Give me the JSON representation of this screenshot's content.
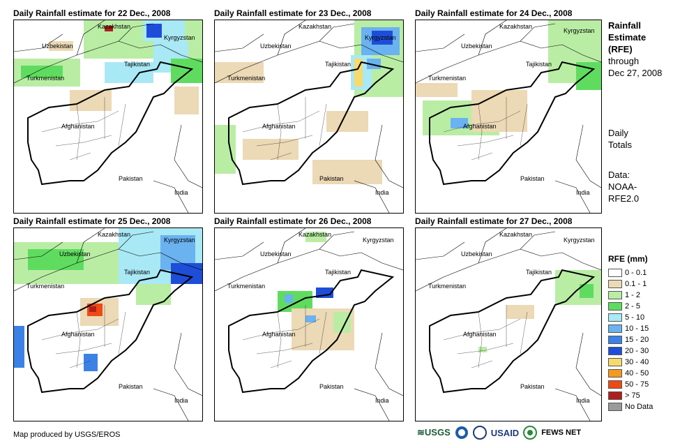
{
  "panels": [
    {
      "title": "Daily Rainfall estimate for 22 Dec., 2008"
    },
    {
      "title": "Daily Rainfall estimate for 23 Dec., 2008"
    },
    {
      "title": "Daily Rainfall estimate for 24 Dec., 2008"
    },
    {
      "title": "Daily Rainfall estimate for 25 Dec., 2008"
    },
    {
      "title": "Daily Rainfall estimate for 26 Dec., 2008"
    },
    {
      "title": "Daily Rainfall estimate for 27 Dec., 2008"
    }
  ],
  "places": {
    "kazakhstan": "Kazakhstan",
    "kyrgyzstan": "Kyrgyzstan",
    "uzbekistan": "Uzbekistan",
    "tajikistan": "Tajikistan",
    "turkmenistan": "Turkmenistan",
    "afghanistan": "Afghanistan",
    "pakistan": "Pakistan",
    "india": "India"
  },
  "sidebar": {
    "title_line1": "Rainfall",
    "title_line2": "Estimate",
    "title_line3": "(RFE)",
    "through": "through",
    "date": "Dec 27, 2008",
    "daily1": "Daily",
    "daily2": "Totals",
    "data1": "Data:",
    "data2": "NOAA-",
    "data3": "RFE2.0"
  },
  "legend": {
    "title": "RFE (mm)",
    "items": [
      {
        "label": "0 - 0.1",
        "color": "#ffffff"
      },
      {
        "label": "0.1 - 1",
        "color": "#ecd9b5"
      },
      {
        "label": "1 - 2",
        "color": "#b9eda4"
      },
      {
        "label": "2 - 5",
        "color": "#5fdc60"
      },
      {
        "label": "5 - 10",
        "color": "#a9e8f5"
      },
      {
        "label": "10 - 15",
        "color": "#6ab2f0"
      },
      {
        "label": "15 - 20",
        "color": "#3c82e6"
      },
      {
        "label": "20 - 30",
        "color": "#1e4ed8"
      },
      {
        "label": "30 - 40",
        "color": "#f7da6c"
      },
      {
        "label": "40 - 50",
        "color": "#f59a1c"
      },
      {
        "label": "50 - 75",
        "color": "#ee4a14"
      },
      {
        "label": "> 75",
        "color": "#b01e1e"
      },
      {
        "label": "No Data",
        "color": "#9a9a9a"
      }
    ]
  },
  "footer": {
    "credit": "Map produced by USGS/EROS",
    "usgs": "USGS",
    "usaid": "USAID",
    "fewsnet": "FEWS NET"
  }
}
